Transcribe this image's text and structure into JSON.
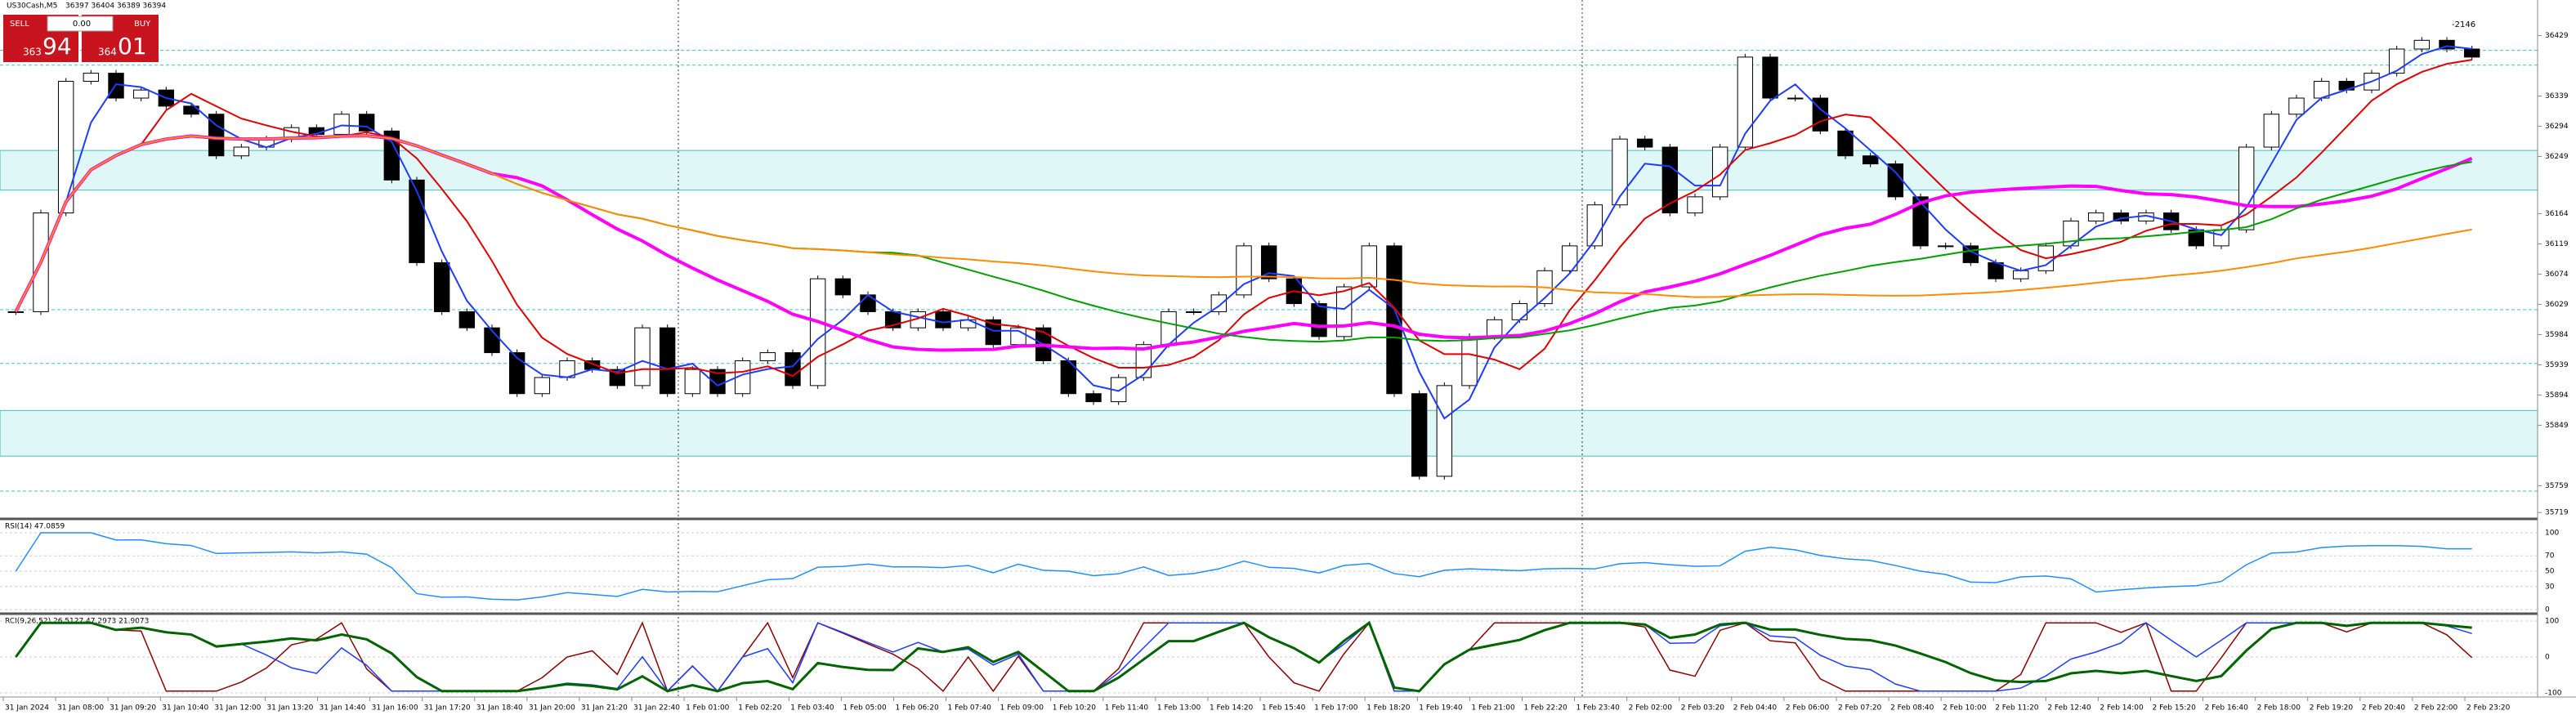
{
  "header": {
    "symbol": "US30Cash,M5",
    "ohlc": "36397 36404 36389 36394",
    "top_right": "-2146"
  },
  "trade_panel": {
    "sell": "SELL",
    "buy": "BUY",
    "lot": "0.00",
    "bid_big": "94",
    "bid_small": "363",
    "ask_big": "01",
    "ask_small": "364"
  },
  "chart_data": {
    "type": "candlestick",
    "closes": [
      36018,
      36165,
      36361,
      36373,
      36336,
      36348,
      36324,
      36312,
      36250,
      36263,
      36275,
      36292,
      36282,
      36312,
      36287,
      36214,
      36091,
      36018,
      35994,
      35957,
      35896,
      35920,
      35945,
      35932,
      35908,
      35994,
      35896,
      35932,
      35896,
      35945,
      35957,
      35908,
      36067,
      36043,
      36018,
      35994,
      36018,
      35994,
      36006,
      35969,
      35994,
      35945,
      35896,
      35884,
      35920,
      35969,
      36018,
      36018,
      36043,
      36116,
      36067,
      36030,
      35981,
      36055,
      36116,
      35896,
      35773,
      35908,
      35981,
      36006,
      36030,
      36079,
      36116,
      36177,
      36275,
      36263,
      36165,
      36189,
      36263,
      36397,
      36336,
      36336,
      36287,
      36250,
      36238,
      36189,
      36116,
      36116,
      36091,
      36067,
      36079,
      36116,
      36153,
      36165,
      36153,
      36165,
      36140,
      36116,
      36140,
      36263,
      36312,
      36336,
      36361,
      36348,
      36373,
      36409,
      36422,
      36409,
      36397
    ],
    "color_up": "#000000",
    "color_down": "#000000",
    "ylim": [
      35712,
      36482
    ],
    "yticks": [
      36429,
      36339,
      36294,
      36249,
      36164,
      36119,
      36074,
      36029,
      35984,
      35939,
      35894,
      35849,
      35759,
      35719
    ],
    "zones": [
      [
        36199,
        36258
      ],
      [
        35803,
        35871
      ]
    ],
    "levels": [
      36407,
      36385,
      36021,
      35941,
      35751
    ],
    "x_labels": [
      "31 Jan 2024",
      "31 Jan 08:00",
      "31 Jan 09:20",
      "31 Jan 10:40",
      "31 Jan 12:00",
      "31 Jan 13:20",
      "31 Jan 14:40",
      "31 Jan 16:00",
      "31 Jan 17:20",
      "31 Jan 18:40",
      "31 Jan 20:00",
      "31 Jan 21:20",
      "31 Jan 22:40",
      "1 Feb 01:00",
      "1 Feb 02:20",
      "1 Feb 03:40",
      "1 Feb 05:00",
      "1 Feb 06:20",
      "1 Feb 07:40",
      "1 Feb 09:00",
      "1 Feb 10:20",
      "1 Feb 11:40",
      "1 Feb 13:00",
      "1 Feb 14:20",
      "1 Feb 15:40",
      "1 Feb 17:00",
      "1 Feb 18:20",
      "1 Feb 19:40",
      "1 Feb 21:00",
      "1 Feb 22:20",
      "1 Feb 23:40",
      "2 Feb 02:00",
      "2 Feb 03:20",
      "2 Feb 04:40",
      "2 Feb 06:00",
      "2 Feb 07:20",
      "2 Feb 08:40",
      "2 Feb 10:00",
      "2 Feb 11:20",
      "2 Feb 12:40",
      "2 Feb 14:00",
      "2 Feb 15:20",
      "2 Feb 16:40",
      "2 Feb 18:00",
      "2 Feb 19:20",
      "2 Feb 20:40",
      "2 Feb 22:00",
      "2 Feb 23:20"
    ],
    "rsi": {
      "label": "RSI(14) 47.0859",
      "ylim": [
        0,
        100
      ],
      "yticks": [
        0,
        30,
        50,
        70,
        100
      ],
      "color": "#1e90ff"
    },
    "osc": {
      "label": "RCI(9,26,52) 26.5127 47.2973 21.9073",
      "ylim": [
        -100,
        100
      ],
      "yticks": [
        -100,
        0,
        100
      ],
      "colors": [
        "#8b0000",
        "#1e3cff",
        "#006400"
      ]
    },
    "ma_colors": [
      "#1e3cff",
      "#e00000",
      "#ff00ff",
      "#00a000",
      "#ff8c00"
    ]
  }
}
